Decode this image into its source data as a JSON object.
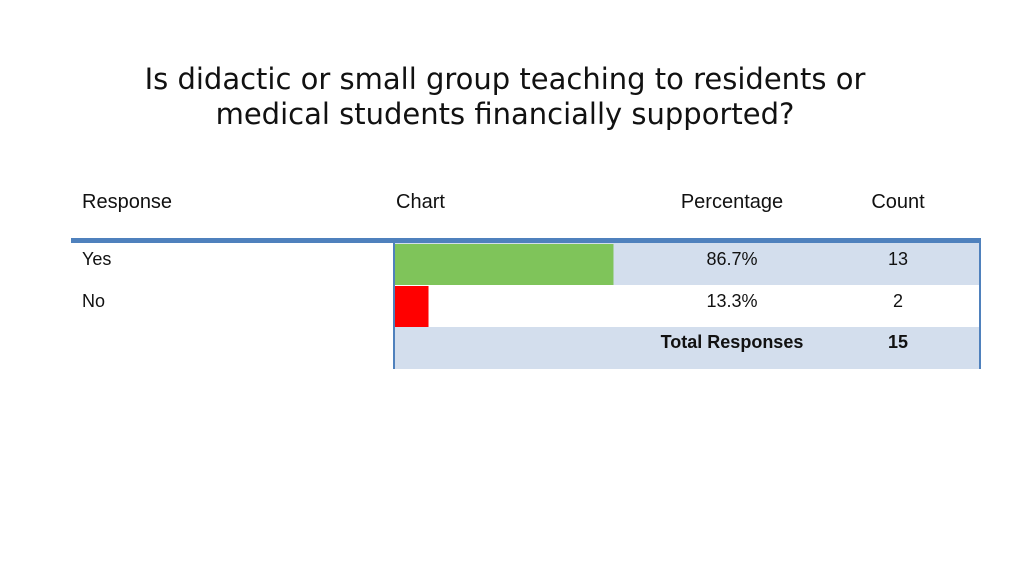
{
  "chart_data": {
    "type": "table",
    "title_lines": [
      "Is didactic or small group teaching to residents or",
      "medical students financially supported?"
    ],
    "columns": [
      "Response",
      "Chart",
      "Percentage",
      "Count"
    ],
    "rows": [
      {
        "response": "Yes",
        "value": 86.7,
        "percentage": "86.7%",
        "count": "13",
        "color": "#7fc45a"
      },
      {
        "response": "No",
        "value": 13.3,
        "percentage": "13.3%",
        "count": "2",
        "color": "#ff0000"
      }
    ],
    "total": {
      "label": "Total Responses",
      "count": "15"
    },
    "value_range": [
      0,
      100
    ]
  },
  "colors": {
    "accent": "#4f81bd",
    "band": "#d3deed"
  }
}
